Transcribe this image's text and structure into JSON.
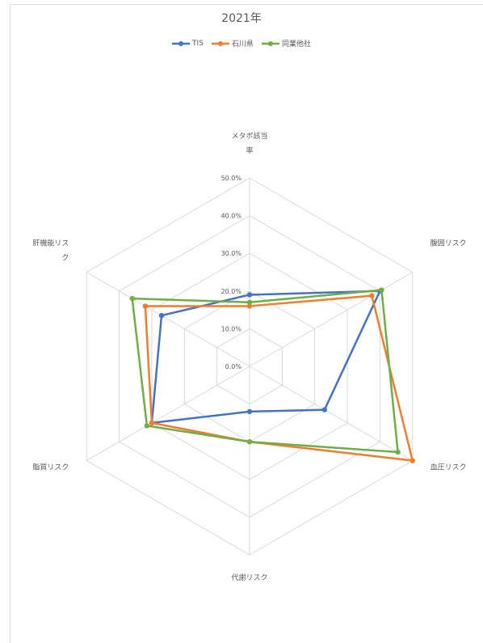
{
  "chart_data": {
    "type": "radar",
    "title": "2021年",
    "axes": [
      [
        "メタボ該当",
        "率"
      ],
      [
        "腹囲リスク"
      ],
      [
        "血圧リスク"
      ],
      [
        "代謝リスク"
      ],
      [
        "脂質リスク"
      ],
      [
        "肝機能リス",
        "ク"
      ]
    ],
    "r_ticks": [
      "0.0%",
      "10.0%",
      "20.0%",
      "30.0%",
      "40.0%",
      "50.0%"
    ],
    "r_max": 50,
    "legend_position": "top",
    "grid": true,
    "series": [
      {
        "name": "TIS",
        "color": "#4472C4",
        "values": [
          19.0,
          40.0,
          23.0,
          12.0,
          30.0,
          27.0
        ]
      },
      {
        "name": "石川県",
        "color": "#ED7D31",
        "values": [
          16.0,
          37.5,
          50.0,
          20.0,
          30.0,
          32.0
        ]
      },
      {
        "name": "同業他社",
        "color": "#70AD47",
        "values": [
          17.0,
          40.5,
          45.5,
          20.0,
          31.5,
          36.0
        ]
      }
    ]
  }
}
